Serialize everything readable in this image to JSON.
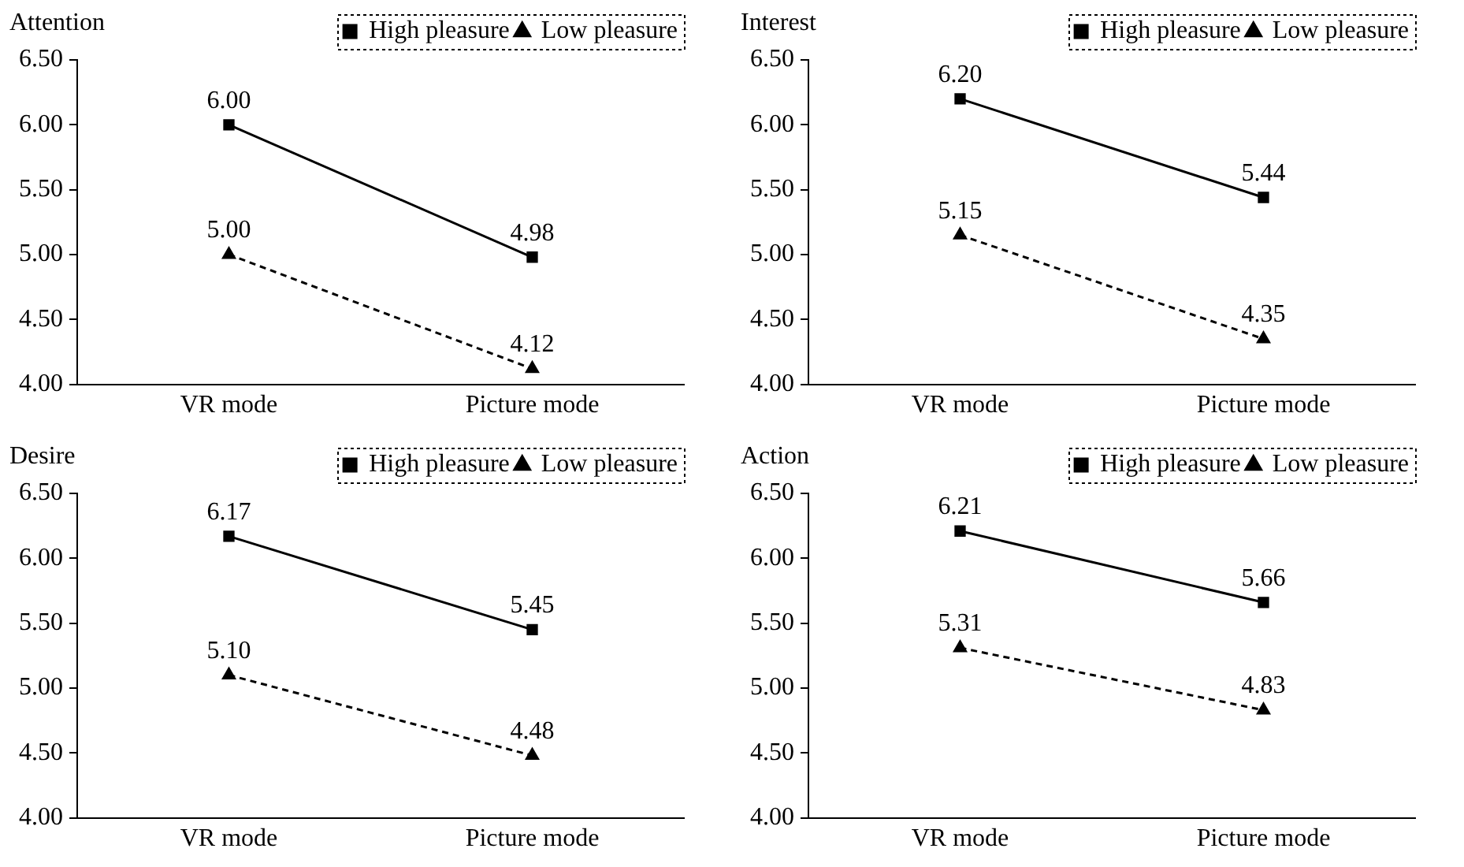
{
  "chart_data": [
    {
      "type": "line",
      "title": "Attention",
      "categories": [
        "VR mode",
        "Picture mode"
      ],
      "ylim": [
        4,
        6.5
      ],
      "yticks": [
        {
          "value": 4,
          "label": "4.00"
        },
        {
          "value": 4.5,
          "label": "4.50"
        },
        {
          "value": 5,
          "label": "5.00"
        },
        {
          "value": 5.5,
          "label": "5.50"
        },
        {
          "value": 6,
          "label": "6.00"
        },
        {
          "value": 6.5,
          "label": "6.50"
        }
      ],
      "grid": false,
      "legend": "top right",
      "series": [
        {
          "name": "High pleasure",
          "color": "#000000",
          "values": [
            6.0,
            4.98
          ],
          "value_labels": [
            "6.00",
            "4.98"
          ],
          "marker": "square",
          "line_style": "solid"
        },
        {
          "name": "Low pleasure",
          "color": "#000000",
          "values": [
            5.0,
            4.12
          ],
          "value_labels": [
            "5.00",
            "4.12"
          ],
          "marker": "triangle",
          "line_style": "dashed"
        }
      ]
    },
    {
      "type": "line",
      "title": "Interest",
      "categories": [
        "VR mode",
        "Picture mode"
      ],
      "ylim": [
        4,
        6.5
      ],
      "yticks": [
        {
          "value": 4,
          "label": "4.00"
        },
        {
          "value": 4.5,
          "label": "4.50"
        },
        {
          "value": 5,
          "label": "5.00"
        },
        {
          "value": 5.5,
          "label": "5.50"
        },
        {
          "value": 6,
          "label": "6.00"
        },
        {
          "value": 6.5,
          "label": "6.50"
        }
      ],
      "grid": false,
      "legend": "top right",
      "series": [
        {
          "name": "High pleasure",
          "color": "#000000",
          "values": [
            6.2,
            5.44
          ],
          "value_labels": [
            "6.20",
            "5.44"
          ],
          "marker": "square",
          "line_style": "solid"
        },
        {
          "name": "Low pleasure",
          "color": "#000000",
          "values": [
            5.15,
            4.35
          ],
          "value_labels": [
            "5.15",
            "4.35"
          ],
          "marker": "triangle",
          "line_style": "dashed"
        }
      ]
    },
    {
      "type": "line",
      "title": "Desire",
      "categories": [
        "VR mode",
        "Picture mode"
      ],
      "ylim": [
        4,
        6.5
      ],
      "yticks": [
        {
          "value": 4,
          "label": "4.00"
        },
        {
          "value": 4.5,
          "label": "4.50"
        },
        {
          "value": 5,
          "label": "5.00"
        },
        {
          "value": 5.5,
          "label": "5.50"
        },
        {
          "value": 6,
          "label": "6.00"
        },
        {
          "value": 6.5,
          "label": "6.50"
        }
      ],
      "grid": false,
      "legend": "top right",
      "series": [
        {
          "name": "High pleasure",
          "color": "#000000",
          "values": [
            6.17,
            5.45
          ],
          "value_labels": [
            "6.17",
            "5.45"
          ],
          "marker": "square",
          "line_style": "solid"
        },
        {
          "name": "Low pleasure",
          "color": "#000000",
          "values": [
            5.1,
            4.48
          ],
          "value_labels": [
            "5.10",
            "4.48"
          ],
          "marker": "triangle",
          "line_style": "dashed"
        }
      ]
    },
    {
      "type": "line",
      "title": "Action",
      "categories": [
        "VR mode",
        "Picture mode"
      ],
      "ylim": [
        4,
        6.5
      ],
      "yticks": [
        {
          "value": 4,
          "label": "4.00"
        },
        {
          "value": 4.5,
          "label": "4.50"
        },
        {
          "value": 5,
          "label": "5.00"
        },
        {
          "value": 5.5,
          "label": "5.50"
        },
        {
          "value": 6,
          "label": "6.00"
        },
        {
          "value": 6.5,
          "label": "6.50"
        }
      ],
      "grid": false,
      "legend": "top right",
      "series": [
        {
          "name": "High pleasure",
          "color": "#000000",
          "values": [
            6.21,
            5.66
          ],
          "value_labels": [
            "6.21",
            "5.66"
          ],
          "marker": "square",
          "line_style": "solid"
        },
        {
          "name": "Low pleasure",
          "color": "#000000",
          "values": [
            5.31,
            4.83
          ],
          "value_labels": [
            "5.31",
            "4.83"
          ],
          "marker": "triangle",
          "line_style": "dashed"
        }
      ]
    }
  ]
}
